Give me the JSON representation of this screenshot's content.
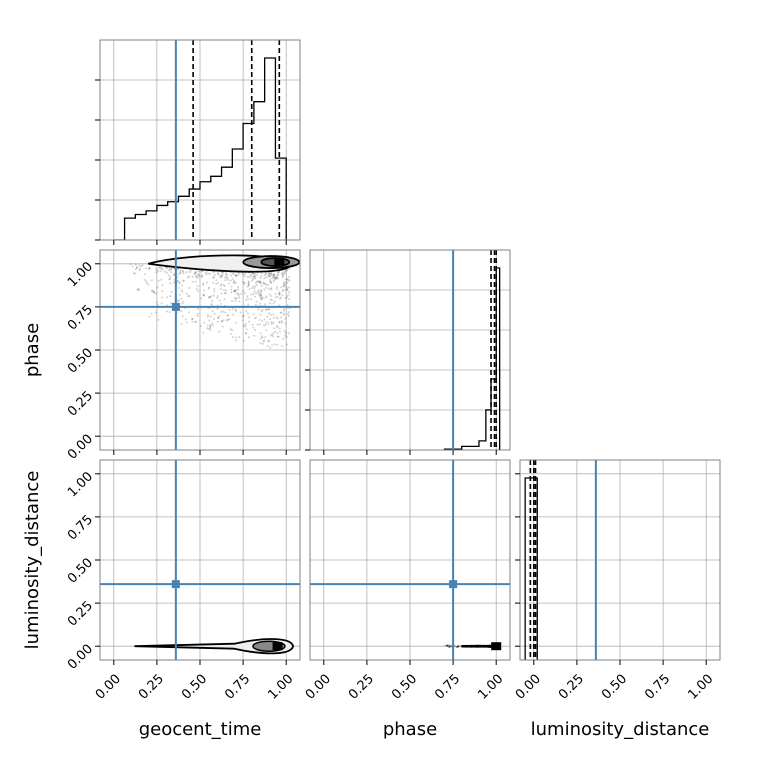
{
  "chart_data": [
    {
      "type": "histogram",
      "panel": "geocent_time",
      "x": [
        0.0,
        0.0625,
        0.125,
        0.1875,
        0.25,
        0.3125,
        0.375,
        0.4375,
        0.5,
        0.5625,
        0.625,
        0.6875,
        0.75,
        0.8125,
        0.875,
        0.9375,
        1.0
      ],
      "density": [
        0.0,
        0.12,
        0.14,
        0.16,
        0.19,
        0.21,
        0.24,
        0.28,
        0.32,
        0.35,
        0.4,
        0.5,
        0.64,
        0.76,
        1.0,
        0.45
      ],
      "quantiles": [
        0.46,
        0.8,
        0.96
      ],
      "truth": 0.36,
      "grid": true
    },
    {
      "type": "scatter",
      "panel": "geocent_time vs phase",
      "xlabel": "",
      "ylabel": "phase",
      "yticks": [
        "0.00",
        "0.25",
        "0.50",
        "0.75",
        "1.00"
      ],
      "ylim": [
        -0.08,
        1.08
      ],
      "contour_peak": [
        0.96,
        1.01
      ],
      "truth": [
        0.36,
        0.75
      ],
      "grid": true
    },
    {
      "type": "histogram",
      "panel": "phase",
      "x": [
        0.7,
        0.8,
        0.9,
        0.94,
        0.97,
        1.0,
        1.02
      ],
      "density": [
        0.005,
        0.02,
        0.05,
        0.22,
        0.39,
        1.0
      ],
      "quantiles": [
        0.97,
        0.99,
        1.0
      ],
      "truth": 0.75,
      "grid": true
    },
    {
      "type": "scatter",
      "panel": "geocent_time vs luminosity_distance",
      "xlabel": "geocent_time",
      "ylabel": "luminosity_distance",
      "xticks": [
        "0.00",
        "0.25",
        "0.50",
        "0.75",
        "1.00"
      ],
      "yticks": [
        "0.00",
        "0.25",
        "0.50",
        "0.75",
        "1.00"
      ],
      "xlim": [
        -0.08,
        1.08
      ],
      "ylim": [
        -0.08,
        1.08
      ],
      "truth": [
        0.36,
        0.36
      ],
      "grid": true
    },
    {
      "type": "scatter",
      "panel": "phase vs luminosity_distance",
      "xlabel": "phase",
      "ylabel": "",
      "xticks": [
        "0.00",
        "0.25",
        "0.50",
        "0.75",
        "1.00"
      ],
      "xlim": [
        -0.08,
        1.08
      ],
      "truth": [
        0.75,
        0.36
      ],
      "grid": true
    },
    {
      "type": "histogram",
      "panel": "luminosity_distance",
      "xlabel": "luminosity_distance",
      "xticks": [
        "0.00",
        "0.25",
        "0.50",
        "0.75",
        "1.00"
      ],
      "xlim": [
        -0.08,
        1.08
      ],
      "x": [
        -0.05,
        0.02
      ],
      "density": [
        1.0
      ],
      "quantiles": [
        -0.02,
        0.0,
        0.01
      ],
      "truth": 0.36,
      "grid": true
    }
  ],
  "colors": {
    "truth": "#4682b4",
    "hist": "#000000",
    "grid": "#b0b0b0",
    "frame": "#808080"
  }
}
